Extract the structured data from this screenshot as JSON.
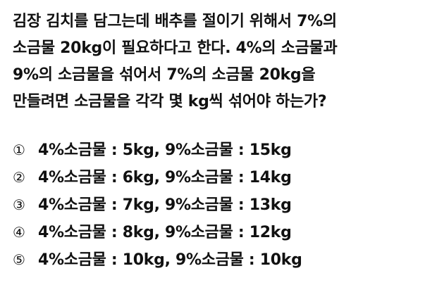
{
  "question": {
    "lines": [
      "김장 김치를 담그는데 배추를 절이기 위해서 7%의",
      "소금물 20kg이 필요하다고 한다. 4%의 소금물과",
      "9%의 소금물을 섞어서 7%의 소금물 20kg을",
      "만들려면 소금물을 각각 몇 kg씩 섞어야 하는가?"
    ]
  },
  "choices": [
    {
      "number": "①",
      "text": "4%소금물 : 5kg, 9%소금물 : 15kg"
    },
    {
      "number": "②",
      "text": "4%소금물 : 6kg, 9%소금물 : 14kg"
    },
    {
      "number": "③",
      "text": "4%소금물 : 7kg, 9%소금물 : 13kg"
    },
    {
      "number": "④",
      "text": "4%소금물 : 8kg, 9%소금물 : 12kg"
    },
    {
      "number": "⑤",
      "text": "4%소금물 : 10kg, 9%소금물 : 10kg"
    }
  ]
}
